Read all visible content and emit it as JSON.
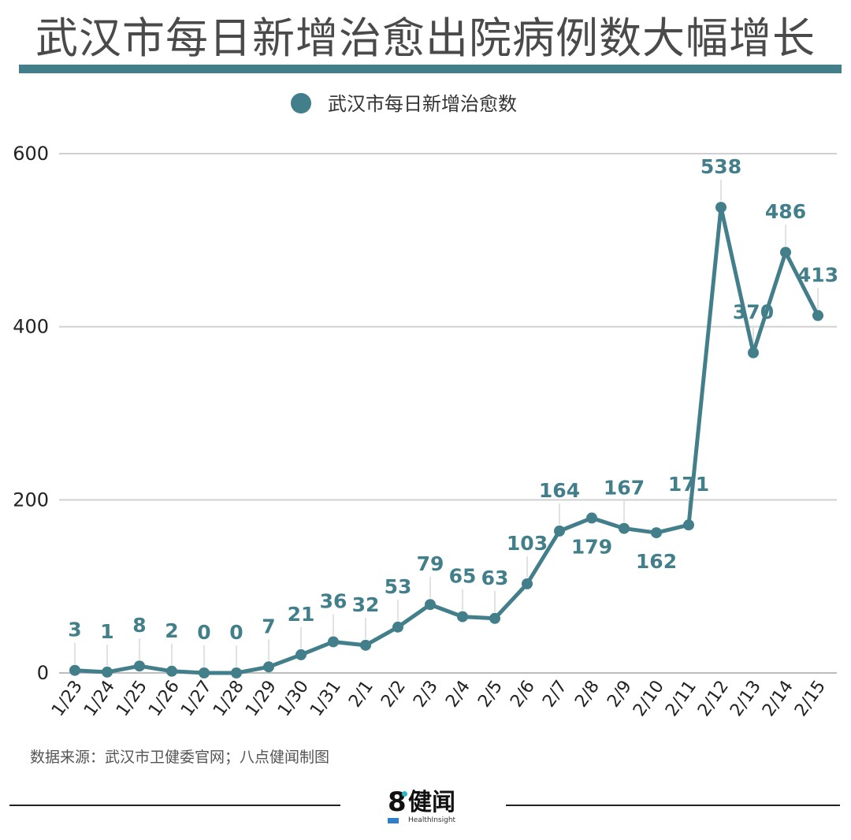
{
  "title": "武汉市每日新增治愈出院病例数大幅增长",
  "colors": {
    "accent": "#427f8b",
    "grid": "#d0d0d0",
    "leader": "#e2e2e2",
    "logo_dot": "#29b6c9",
    "logo_badge": "#2f80c8"
  },
  "source_note": "数据来源：武汉市卫健委官网；八点健闻制图",
  "logo": {
    "number": "8",
    "name": "健闻",
    "subtitle": "HealthInsight",
    "icon": "8-dot-logo"
  },
  "chart_data": {
    "type": "line",
    "title": "武汉市每日新增治愈出院病例数大幅增长",
    "xlabel": "",
    "ylabel": "",
    "categories": [
      "1/23",
      "1/24",
      "1/25",
      "1/26",
      "1/27",
      "1/28",
      "1/29",
      "1/30",
      "1/31",
      "2/1",
      "2/2",
      "2/3",
      "2/4",
      "2/5",
      "2/6",
      "2/7",
      "2/8",
      "2/9",
      "2/10",
      "2/11",
      "2/12",
      "2/13",
      "2/14",
      "2/15"
    ],
    "series": [
      {
        "name": "武汉市每日新增治愈数",
        "values": [
          3,
          1,
          8,
          2,
          0,
          0,
          7,
          21,
          36,
          32,
          53,
          79,
          65,
          63,
          103,
          164,
          179,
          167,
          162,
          171,
          538,
          370,
          486,
          413
        ]
      }
    ],
    "ylim": [
      0,
      600
    ],
    "yticks": [
      0,
      200,
      400,
      600
    ],
    "grid": true,
    "legend_position": "top-center",
    "label_position": [
      "above",
      "above",
      "above",
      "above",
      "above",
      "above",
      "above",
      "above",
      "above",
      "above",
      "above",
      "above",
      "above",
      "above",
      "above",
      "above",
      "below",
      "above",
      "below",
      "above",
      "above",
      "above",
      "above",
      "above"
    ]
  }
}
